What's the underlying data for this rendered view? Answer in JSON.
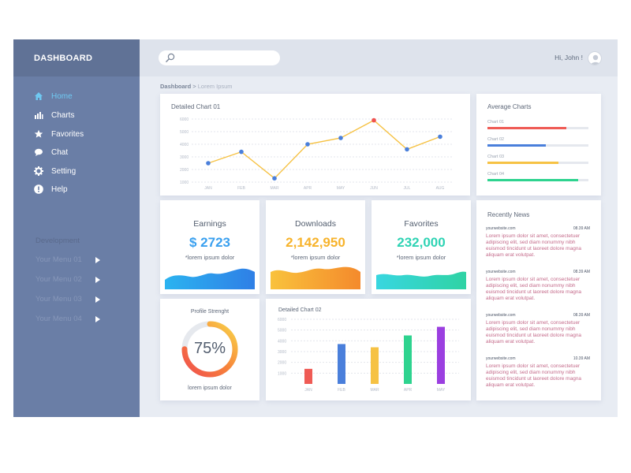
{
  "brand": "DASHBOARD",
  "sidebar": {
    "items": [
      {
        "label": "Home",
        "icon": "home-icon",
        "active": true
      },
      {
        "label": "Charts",
        "icon": "bar-chart-icon",
        "active": false
      },
      {
        "label": "Favorites",
        "icon": "star-icon",
        "active": false
      },
      {
        "label": "Chat",
        "icon": "chat-bubble-icon",
        "active": false
      },
      {
        "label": "Setting",
        "icon": "gear-icon",
        "active": false
      },
      {
        "label": "Help",
        "icon": "help-icon",
        "active": false
      }
    ],
    "section_label": "Development",
    "sub_items": [
      "Your Menu 01",
      "Your Menu 02",
      "Your Menu 03",
      "Your Menu 04"
    ]
  },
  "topbar": {
    "search_placeholder": "",
    "greeting": "Hi, John !"
  },
  "breadcrumb": {
    "root": "Dashboard",
    "sep": ">",
    "current": "Lorem Ipsum"
  },
  "chart1": {
    "title": "Detailed Chart 01",
    "chart_data": {
      "type": "line",
      "categories": [
        "JAN",
        "FEB",
        "MAR",
        "APR",
        "MAY",
        "JUN",
        "JUL",
        "AUG"
      ],
      "values": [
        2500,
        3400,
        1300,
        4000,
        4500,
        5900,
        3600,
        4600
      ],
      "y_ticks": [
        "1000",
        "2000",
        "3000",
        "4000",
        "5000",
        "6000"
      ],
      "ylim": [
        1000,
        6000
      ],
      "highlight_index": 5,
      "line_color": "#f6c244",
      "point_color": "#4a7fdb",
      "highlight_color": "#f0524f",
      "grid": true
    }
  },
  "stats": [
    {
      "title": "Earnings",
      "value": "$ 2723",
      "sub": "*lorem ipsum dolor",
      "color": "#3aa0ef"
    },
    {
      "title": "Downloads",
      "value": "2,142,950",
      "sub": "*lorem ipsum dolor",
      "color": "#f7b32b"
    },
    {
      "title": "Favorites",
      "value": "232,000",
      "sub": "*lorem ipsum dolor",
      "color": "#2fd3b4"
    }
  ],
  "average": {
    "title": "Average Charts",
    "rows": [
      {
        "label": "Chart 01",
        "value": 0.78,
        "color": "#ef5b55"
      },
      {
        "label": "Chart 02",
        "value": 0.58,
        "color": "#4a7fdb"
      },
      {
        "label": "Chart 03",
        "value": 0.7,
        "color": "#f6c244"
      },
      {
        "label": "Chart 04",
        "value": 0.9,
        "color": "#2ed38f"
      }
    ]
  },
  "news": {
    "title": "Recently News",
    "items": [
      {
        "site": "yourwebsite.com",
        "time": "08.39 AM",
        "text": "Lorem ipsum dolor sit amet, consectetuer adipiscing elit, sed diam nonummy nibh euismod tincidunt ut laoreet dolore magna aliquam erat volutpat."
      },
      {
        "site": "yourwebsite.com",
        "time": "08.39 AM",
        "text": "Lorem ipsum dolor sit amet, consectetuer adipiscing elit, sed diam nonummy nibh euismod tincidunt ut laoreet dolore magna aliquam erat volutpat."
      },
      {
        "site": "yourwebsite.com",
        "time": "08.39 AM",
        "text": "Lorem ipsum dolor sit amet, consectetuer adipiscing elit, sed diam nonummy nibh euismod tincidunt ut laoreet dolore magna aliquam erat volutpat."
      },
      {
        "site": "yourwebsite.com",
        "time": "10.39 AM",
        "text": "Lorem ipsum dolor sit amet, consectetuer adipiscing elit, sed diam nonummy nibh euismod tincidunt ut laoreet dolore magna aliquam erat volutpat."
      }
    ]
  },
  "profile": {
    "title": "Profile Strenght",
    "percent_label": "75%",
    "value": 0.75,
    "sub": "lorem ipsum dolor"
  },
  "chart2": {
    "title": "Detailed Chart 02",
    "chart_data": {
      "type": "bar",
      "categories": [
        "JAN",
        "FEB",
        "MAR",
        "APR",
        "MAY"
      ],
      "values": [
        1400,
        3700,
        3400,
        4500,
        5300
      ],
      "colors": [
        "#ef5b55",
        "#4a7fdb",
        "#f6c244",
        "#2ed38f",
        "#9b3fe0"
      ],
      "y_ticks": [
        "1000",
        "2000",
        "3000",
        "4000",
        "5000",
        "6000"
      ],
      "ylim": [
        0,
        6000
      ],
      "grid": true
    }
  }
}
